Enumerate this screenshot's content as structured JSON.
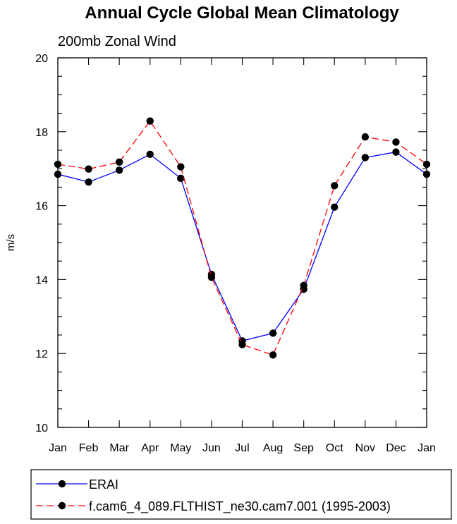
{
  "chart_data": {
    "type": "line",
    "title": "Annual Cycle Global Mean Climatology",
    "subtitle": "200mb Zonal Wind",
    "xlabel": "",
    "ylabel": "m/s",
    "categories": [
      "Jan",
      "Feb",
      "Mar",
      "Apr",
      "May",
      "Jun",
      "Jul",
      "Aug",
      "Sep",
      "Oct",
      "Nov",
      "Dec",
      "Jan"
    ],
    "ylim": [
      10,
      20
    ],
    "yticks": [
      "10",
      "12",
      "14",
      "16",
      "18",
      "20"
    ],
    "grid": false,
    "legend_position": "bottom",
    "series": [
      {
        "name": "ERAI",
        "color": "#0000ff",
        "line_style": "solid",
        "values": [
          16.85,
          16.64,
          16.96,
          17.39,
          16.74,
          14.14,
          12.34,
          12.55,
          13.74,
          15.96,
          17.3,
          17.45,
          16.85
        ]
      },
      {
        "name": "f.cam6_4_089.FLTHIST_ne30.cam7.001 (1995-2003)",
        "color": "#ff0000",
        "line_style": "dashed",
        "values": [
          17.12,
          16.99,
          17.18,
          18.29,
          17.05,
          14.06,
          12.24,
          11.96,
          13.84,
          16.54,
          17.86,
          17.72,
          17.12
        ]
      }
    ]
  }
}
